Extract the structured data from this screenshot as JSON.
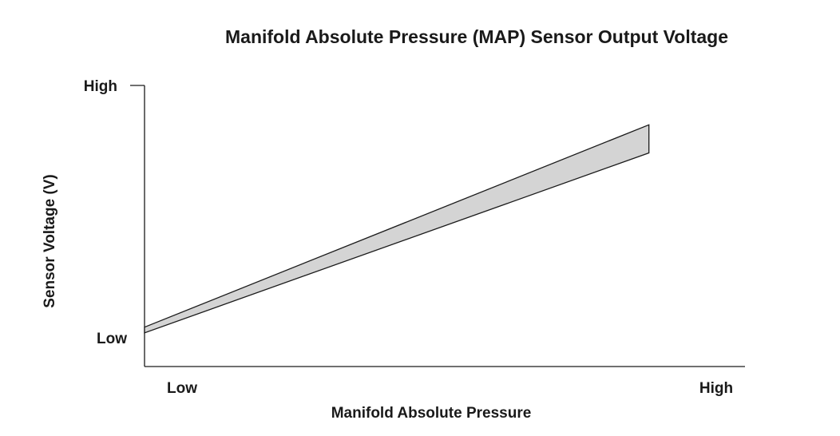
{
  "chart_data": {
    "type": "area",
    "title": "Manifold Absolute Pressure (MAP) Sensor Output Voltage",
    "xlabel": "Manifold Absolute Pressure",
    "ylabel": "Sensor Voltage (V)",
    "x_tick_labels": {
      "low": "Low",
      "high": "High"
    },
    "y_tick_labels": {
      "low": "Low",
      "high": "High"
    },
    "xlim": [
      0,
      1
    ],
    "ylim": [
      0,
      1
    ],
    "grid": false,
    "legend": "none",
    "series": [
      {
        "x": [
          0.0,
          0.84
        ],
        "y_upper": [
          0.14,
          0.86
        ],
        "y_lower": [
          0.12,
          0.76
        ]
      }
    ],
    "colors": {
      "band_fill": "#d4d4d4",
      "band_stroke": "#1a1a1a",
      "axis": "#1a1a1a",
      "text": "#1a1a1a"
    }
  }
}
